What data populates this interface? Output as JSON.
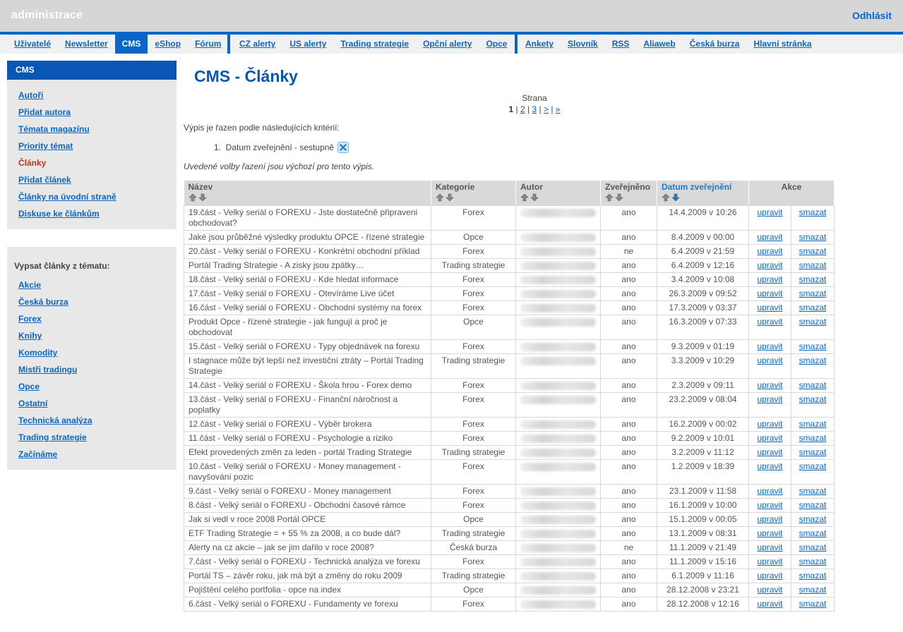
{
  "header": {
    "brand": "administrace",
    "logout": "Odhlásit"
  },
  "nav": {
    "group1": [
      "Uživatelé",
      "Newsletter",
      "CMS",
      "eShop",
      "Fórum"
    ],
    "group2": [
      "CZ alerty",
      "US alerty",
      "Trading strategie",
      "Opční alerty",
      "Opce"
    ],
    "group3": [
      "Ankety",
      "Slovník",
      "RSS",
      "Aliaweb",
      "Česká burza",
      "Hlavní stránka"
    ],
    "active": "CMS"
  },
  "sidebar": {
    "heading": "CMS",
    "items": [
      "Autoři",
      "Přidat autora",
      "Témata magazínu",
      "Priority témat",
      "Články",
      "Přidat článek",
      "Články na úvodní straně",
      "Diskuse ke článkům"
    ],
    "current": "Články",
    "topics_title": "Vypsat články z tématu:",
    "topics": [
      "Akcie",
      "Česká burza",
      "Forex",
      "Knihy",
      "Komodity",
      "Mistři tradingu",
      "Opce",
      "Ostatní",
      "Technická analýza",
      "Trading strategie",
      "Začínáme"
    ]
  },
  "main": {
    "title": "CMS - Články",
    "pager_label": "Strana",
    "pager": {
      "current": "1",
      "pages": [
        "2",
        "3"
      ],
      "next": ">",
      "last": "»"
    },
    "sort_intro": "Výpis je řazen podle následujících kritérií:",
    "sort_item": "1.  Datum zveřejnění - sestupně",
    "sort_note": "Uvedené volby řazení jsou výchozí pro tento výpis.",
    "columns": [
      "Název",
      "Kategorie",
      "Autor",
      "Zveřejněno",
      "Datum zveřejnění",
      "Akce"
    ],
    "edit_label": "upravit",
    "delete_label": "smazat",
    "rows": [
      [
        "19.část - Velký seriál o FOREXU - Jste dostatečně připraveni obchodovat?",
        "Forex",
        "ano",
        "14.4.2009 v 10:26"
      ],
      [
        "Jaké jsou průběžné výsledky produktu OPCE - řízené strategie",
        "Opce",
        "ano",
        "8.4.2009 v 00:00"
      ],
      [
        "20.část - Velký seriál o FOREXU - Konkrétní obchodní příklad",
        "Forex",
        "ne",
        "6.4.2009 v 21:59"
      ],
      [
        "Portál Trading Strategie - A zisky jsou zpátky…",
        "Trading strategie",
        "ano",
        "6.4.2009 v 12:16"
      ],
      [
        "18.část - Velký seriál o FOREXU - Kde hledat informace",
        "Forex",
        "ano",
        "3.4.2009 v 10:08"
      ],
      [
        "17.část - Velký seriál o FOREXU - Otevíráme Live účet",
        "Forex",
        "ano",
        "26.3.2009 v 09:52"
      ],
      [
        "16.část - Velký seriál o FOREXU - Obchodní systémy na forex",
        "Forex",
        "ano",
        "17.3.2009 v 03:37"
      ],
      [
        "Produkt Opce - řízené strategie - jak fungují a proč je obchodovat",
        "Opce",
        "ano",
        "16.3.2009 v 07:33"
      ],
      [
        "15.část - Velký seriál o FOREXU - Typy objednávek na forexu",
        "Forex",
        "ano",
        "9.3.2009 v 01:19"
      ],
      [
        "I stagnace může být lepší než investiční ztráty – Portál Trading Strategie",
        "Trading strategie",
        "ano",
        "3.3.2009 v 10:29"
      ],
      [
        "14.část - Velký seriál o FOREXU - Škola hrou - Forex demo",
        "Forex",
        "ano",
        "2.3.2009 v 09:11"
      ],
      [
        "13.část - Velký seriál o FOREXU - Finanční náročnost a poplatky",
        "Forex",
        "ano",
        "23.2.2009 v 08:04"
      ],
      [
        "12.část - Velký seriál o FOREXU - Výběr brokera",
        "Forex",
        "ano",
        "16.2.2009 v 00:02"
      ],
      [
        "11.část - Velký seriál o FOREXU - Psychologie a riziko",
        "Forex",
        "ano",
        "9.2.2009 v 10:01"
      ],
      [
        "Efekt provedených změn za leden - portál Trading Strategie",
        "Trading strategie",
        "ano",
        "3.2.2009 v 11:12"
      ],
      [
        "10.část - Velký seriál o FOREXU - Money management - navyšování pozic",
        "Forex",
        "ano",
        "1.2.2009 v 18:39"
      ],
      [
        "9.část - Velký seriál o FOREXU - Money management",
        "Forex",
        "ano",
        "23.1.2009 v 11:58"
      ],
      [
        "8.část - Velký seriál o FOREXU - Obchodní časové rámce",
        "Forex",
        "ano",
        "16.1.2009 v 10:00"
      ],
      [
        "Jak si vedl v roce 2008 Portál OPCE",
        "Opce",
        "ano",
        "15.1.2009 v 00:05"
      ],
      [
        "ETF Trading Strategie = + 55 % za 2008, a co bude dál?",
        "Trading strategie",
        "ano",
        "13.1.2009 v 08:31"
      ],
      [
        "Alerty na cz akcie – jak se jim dařilo v roce 2008?",
        "Česká burza",
        "ne",
        "11.1.2009 v 21:49"
      ],
      [
        "7.část - Velký seriál o FOREXU - Technická analýza ve forexu",
        "Forex",
        "ano",
        "11.1.2009 v 15:16"
      ],
      [
        "Portál TS – závěr roku, jak má být a změny do roku 2009",
        "Trading strategie",
        "ano",
        "6.1.2009 v 11:16"
      ],
      [
        "Pojištění celého portfolia - opce na index",
        "Opce",
        "ano",
        "28.12.2008 v 23:21"
      ],
      [
        "6.část - Velký seriál o FOREXU - Fundamenty ve forexu",
        "Forex",
        "ano",
        "28.12.2008 v 12:16"
      ]
    ]
  },
  "colors": {
    "accent": "#0a66c6",
    "current": "#c0321f",
    "header_bg": "#d6d6d6"
  }
}
